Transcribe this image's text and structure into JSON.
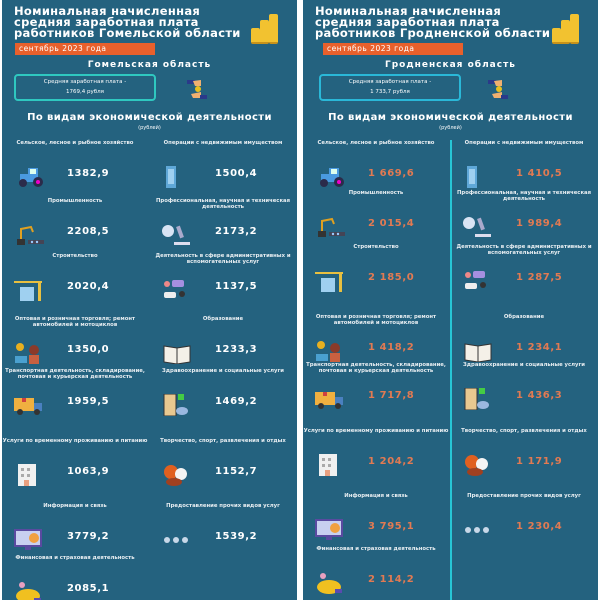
{
  "colors": {
    "background": "#24627f",
    "date_badge": "#e8602c",
    "value_right": "#e27a52",
    "box_left": "#2fc8c0",
    "box_right": "#2ab8d8"
  },
  "panels": [
    {
      "title": "Номинальная начисленная средняя заработная плата работников Гомельской области",
      "date": "сентябрь 2023 года",
      "region": "Гомельская область",
      "avg_label": "Средняя заработная плата -",
      "avg_value": "1769,4 рубля",
      "section_title": "По видам экономической деятельности",
      "section_unit": "(рублей)",
      "items": [
        {
          "label": "Сельское, лесное и рыбное хозяйство",
          "value": "1382,9",
          "icon": "tractor-icon"
        },
        {
          "label": "Операции с недвижимым имуществом",
          "value": "1500,4",
          "icon": "building-icon"
        },
        {
          "label": "Промышленность",
          "value": "2208,5",
          "icon": "robot-arm-icon"
        },
        {
          "label": "Профессиональная, научная и техническая деятельность",
          "value": "2173,2",
          "icon": "microscope-icon"
        },
        {
          "label": "Строительство",
          "value": "2020,4",
          "icon": "crane-icon"
        },
        {
          "label": "Деятельность в сфере административных и вспомогательных услуг",
          "value": "1137,5",
          "icon": "support-chat-icon"
        },
        {
          "label": "Оптовая и розничная торговля; ремонт автомобилей и мотоциклов",
          "value": "1350,0",
          "icon": "cashier-icon"
        },
        {
          "label": "Образование",
          "value": "1233,3",
          "icon": "book-icon"
        },
        {
          "label": "Транспортная деятельность, складирование, почтовая и курьерская деятельность",
          "value": "1959,5",
          "icon": "truck-icon"
        },
        {
          "label": "Здравоохранение и социальные услуги",
          "value": "1469,2",
          "icon": "hospital-icon"
        },
        {
          "label": "Услуги по временному проживанию и питанию",
          "value": "1063,9",
          "icon": "hotel-icon"
        },
        {
          "label": "Творчество, спорт, развлечения и отдых",
          "value": "1152,7",
          "icon": "sports-balls-icon"
        },
        {
          "label": "Информация и связь",
          "value": "3779,2",
          "icon": "monitor-chart-icon"
        },
        {
          "label": "Предоставление прочих видов услуг",
          "value": "1539,2",
          "icon": "dots-icon"
        },
        {
          "label": "Финансовая и страховая деятельность",
          "value": "2085,1",
          "icon": "money-bag-icon"
        }
      ]
    },
    {
      "title": "Номинальная начисленная средняя заработная плата работников Гродненской области",
      "date": "сентябрь 2023 года",
      "region": "Гродненская область",
      "avg_label": "Средняя заработная плата -",
      "avg_value": "1 733,7 рубля",
      "section_title": "По видам экономической деятельности",
      "section_unit": "(рублей)",
      "items": [
        {
          "label": "Сельское, лесное и рыбное хозяйство",
          "value": "1 669,6",
          "icon": "tractor-icon"
        },
        {
          "label": "Операции с недвижимым имуществом",
          "value": "1 410,5",
          "icon": "building-icon"
        },
        {
          "label": "Промышленность",
          "value": "2 015,4",
          "icon": "robot-arm-icon"
        },
        {
          "label": "Профессиональная, научная и техническая деятельность",
          "value": "1 989,4",
          "icon": "microscope-icon"
        },
        {
          "label": "Строительство",
          "value": "2 185,0",
          "icon": "crane-icon"
        },
        {
          "label": "Деятельность в сфере административных и вспомогательных услуг",
          "value": "1 287,5",
          "icon": "support-chat-icon"
        },
        {
          "label": "Оптовая и розничная торговля; ремонт автомобилей и мотоциклов",
          "value": "1 418,2",
          "icon": "cashier-icon"
        },
        {
          "label": "Образование",
          "value": "1 234,1",
          "icon": "book-icon"
        },
        {
          "label": "Транспортная деятельность, складирование, почтовая и курьерская деятельность",
          "value": "1 717,8",
          "icon": "truck-icon"
        },
        {
          "label": "Здравоохранение и социальные услуги",
          "value": "1 436,3",
          "icon": "hospital-icon"
        },
        {
          "label": "Услуги по временному проживанию и питанию",
          "value": "1 204,2",
          "icon": "hotel-icon"
        },
        {
          "label": "Творчество, спорт, развлечения и отдых",
          "value": "1 171,9",
          "icon": "sports-balls-icon"
        },
        {
          "label": "Информация и связь",
          "value": "3 795,1",
          "icon": "monitor-chart-icon"
        },
        {
          "label": "Предоставление прочих видов услуг",
          "value": "1 230,4",
          "icon": "dots-icon"
        },
        {
          "label": "Финансовая и страховая деятельность",
          "value": "2 114,2",
          "icon": "money-bag-icon"
        }
      ]
    }
  ]
}
